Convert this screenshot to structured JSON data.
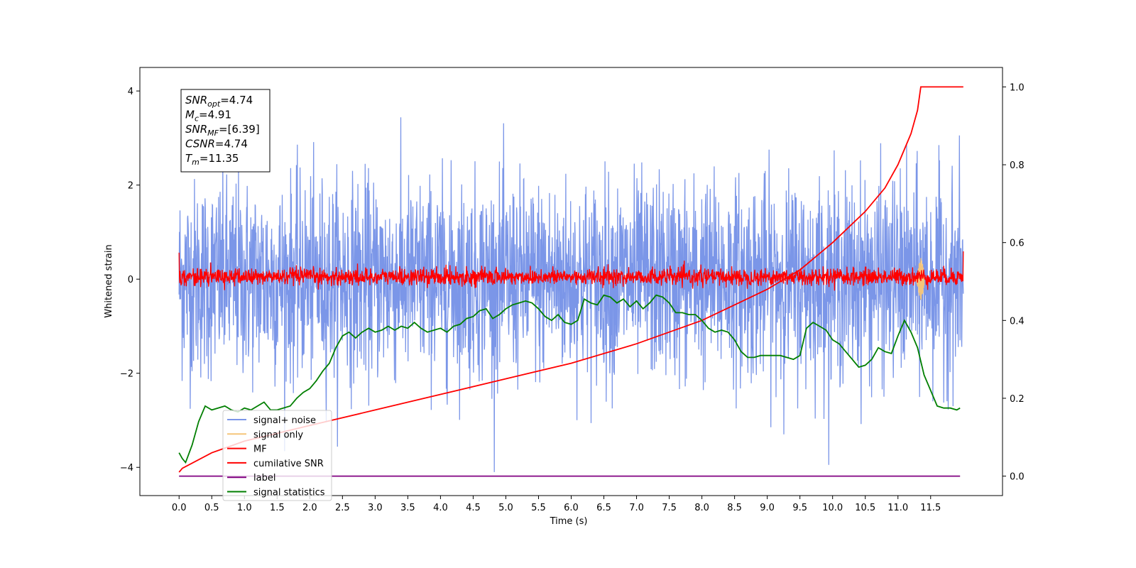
{
  "chart_data": {
    "type": "line",
    "xlabel": "Time (s)",
    "ylabel_left": "Whitened strain",
    "xlim": [
      -0.6,
      12.6
    ],
    "ylim_left": [
      -4.6,
      4.5
    ],
    "ylim_right": [
      -0.05,
      1.05
    ],
    "x_ticks": [
      "0.0",
      "0.5",
      "1.0",
      "1.5",
      "2.0",
      "2.5",
      "3.0",
      "3.5",
      "4.0",
      "4.5",
      "5.0",
      "5.5",
      "6.0",
      "6.5",
      "7.0",
      "7.5",
      "8.0",
      "8.5",
      "9.0",
      "9.5",
      "10.0",
      "10.5",
      "11.0",
      "11.5"
    ],
    "y_left_ticks": [
      4,
      2,
      0,
      -2,
      -4
    ],
    "y_left_tick_labels": [
      "4",
      "2",
      "0",
      "−2",
      "−4"
    ],
    "y_right_ticks": [
      1.0,
      0.8,
      0.6,
      0.4,
      0.2,
      0.0
    ],
    "y_right_tick_labels": [
      "1.0",
      "0.8",
      "0.6",
      "0.4",
      "0.2",
      "0.0"
    ],
    "info_box": [
      {
        "base": "SNR",
        "sub": "opt",
        "value": "=4.74"
      },
      {
        "base": "M",
        "sub": "c",
        "value": "=4.91"
      },
      {
        "base": "SNR",
        "sub": "MF",
        "value": "=[6.39]"
      },
      {
        "base": "CSNR",
        "sub": "",
        "value": "=4.74"
      },
      {
        "base": "T",
        "sub": "m",
        "value": "=11.35"
      }
    ],
    "legend_position": "lower-left",
    "series": [
      {
        "name": "signal+ noise",
        "color": "#7b96e8",
        "axis": "left",
        "x_range": [
          0.0,
          12.0
        ],
        "amplitude_range": [
          -4.1,
          4.1
        ],
        "description_kind": "noise"
      },
      {
        "name": "signal only",
        "color": "#f5c57a",
        "axis": "left",
        "x_range": [
          11.2,
          11.4
        ],
        "burst": {
          "center": 11.35,
          "amplitude": 0.45
        }
      },
      {
        "name": "MF",
        "color": "#ff0000",
        "axis": "left",
        "x_range": [
          0.0,
          12.0
        ],
        "amplitude_range": [
          -0.25,
          0.6
        ]
      },
      {
        "name": "cumilative SNR",
        "color": "#ff0000",
        "axis": "right",
        "x": [
          0.0,
          0.05,
          0.5,
          1.0,
          2.0,
          3.0,
          4.0,
          5.0,
          6.0,
          7.0,
          8.0,
          8.5,
          9.0,
          9.5,
          10.0,
          10.5,
          10.8,
          11.0,
          11.2,
          11.3,
          11.35,
          12.0
        ],
        "y": [
          0.01,
          0.02,
          0.06,
          0.09,
          0.13,
          0.17,
          0.21,
          0.25,
          0.29,
          0.34,
          0.4,
          0.44,
          0.48,
          0.53,
          0.6,
          0.68,
          0.74,
          0.8,
          0.88,
          0.94,
          1.0,
          1.0
        ]
      },
      {
        "name": "label",
        "color": "#800080",
        "axis": "right",
        "x": [
          0.0,
          11.95
        ],
        "y": [
          0.0,
          0.0
        ]
      },
      {
        "name": "signal statistics",
        "color": "#007f00",
        "axis": "right",
        "x": [
          0.0,
          0.05,
          0.1,
          0.2,
          0.3,
          0.4,
          0.5,
          0.7,
          0.8,
          0.9,
          1.0,
          1.1,
          1.2,
          1.3,
          1.4,
          1.5,
          1.7,
          1.8,
          1.9,
          2.0,
          2.1,
          2.2,
          2.3,
          2.4,
          2.5,
          2.6,
          2.7,
          2.8,
          2.9,
          3.0,
          3.1,
          3.2,
          3.3,
          3.4,
          3.5,
          3.6,
          3.7,
          3.8,
          3.9,
          4.0,
          4.1,
          4.2,
          4.3,
          4.4,
          4.5,
          4.6,
          4.7,
          4.8,
          4.9,
          5.0,
          5.1,
          5.2,
          5.3,
          5.4,
          5.5,
          5.6,
          5.7,
          5.8,
          5.9,
          6.0,
          6.1,
          6.2,
          6.3,
          6.4,
          6.5,
          6.6,
          6.7,
          6.8,
          6.9,
          7.0,
          7.1,
          7.2,
          7.3,
          7.4,
          7.5,
          7.6,
          7.7,
          7.8,
          7.9,
          8.0,
          8.1,
          8.2,
          8.3,
          8.4,
          8.5,
          8.6,
          8.7,
          8.8,
          8.9,
          9.0,
          9.2,
          9.4,
          9.5,
          9.6,
          9.7,
          9.8,
          9.9,
          10.0,
          10.1,
          10.2,
          10.3,
          10.4,
          10.5,
          10.6,
          10.7,
          10.8,
          10.9,
          11.0,
          11.1,
          11.2,
          11.3,
          11.4,
          11.5,
          11.6,
          11.7,
          11.8,
          11.9,
          11.95
        ],
        "y": [
          0.06,
          0.045,
          0.035,
          0.08,
          0.14,
          0.18,
          0.17,
          0.18,
          0.17,
          0.165,
          0.175,
          0.17,
          0.18,
          0.19,
          0.17,
          0.17,
          0.18,
          0.2,
          0.215,
          0.225,
          0.245,
          0.27,
          0.29,
          0.33,
          0.36,
          0.37,
          0.355,
          0.37,
          0.38,
          0.37,
          0.375,
          0.385,
          0.375,
          0.385,
          0.38,
          0.395,
          0.38,
          0.37,
          0.375,
          0.38,
          0.37,
          0.385,
          0.39,
          0.405,
          0.41,
          0.425,
          0.43,
          0.405,
          0.415,
          0.43,
          0.44,
          0.445,
          0.45,
          0.445,
          0.43,
          0.41,
          0.4,
          0.415,
          0.395,
          0.39,
          0.4,
          0.455,
          0.445,
          0.44,
          0.465,
          0.46,
          0.445,
          0.455,
          0.435,
          0.45,
          0.43,
          0.445,
          0.465,
          0.46,
          0.445,
          0.42,
          0.42,
          0.415,
          0.415,
          0.4,
          0.38,
          0.37,
          0.375,
          0.37,
          0.35,
          0.32,
          0.305,
          0.305,
          0.31,
          0.31,
          0.31,
          0.3,
          0.31,
          0.38,
          0.395,
          0.385,
          0.375,
          0.35,
          0.34,
          0.32,
          0.3,
          0.28,
          0.285,
          0.3,
          0.33,
          0.32,
          0.315,
          0.36,
          0.4,
          0.37,
          0.33,
          0.26,
          0.22,
          0.18,
          0.175,
          0.175,
          0.17,
          0.175
        ]
      }
    ]
  }
}
